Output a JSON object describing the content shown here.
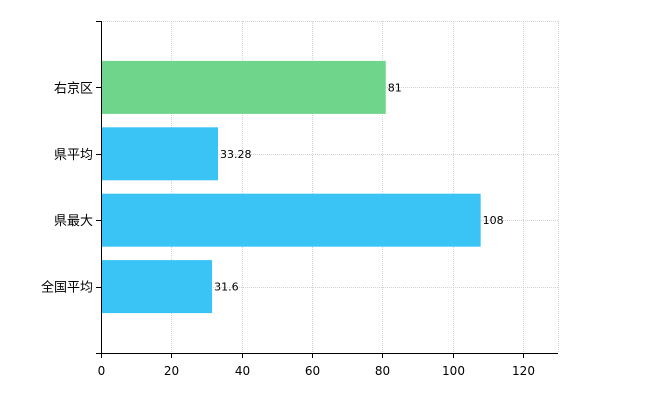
{
  "chart_data": {
    "type": "bar",
    "orientation": "horizontal",
    "categories": [
      "右京区",
      "県平均",
      "県最大",
      "全国平均"
    ],
    "values": [
      81,
      33.28,
      108,
      31.6
    ],
    "value_labels": [
      "81",
      "33.28",
      "108",
      "31.6"
    ],
    "bar_colors": [
      "#6fd58b",
      "#39c4f5",
      "#39c4f5",
      "#39c4f5"
    ],
    "xlim": [
      0,
      130
    ],
    "xticks": [
      0,
      20,
      40,
      60,
      80,
      100,
      120
    ],
    "grid": true
  }
}
